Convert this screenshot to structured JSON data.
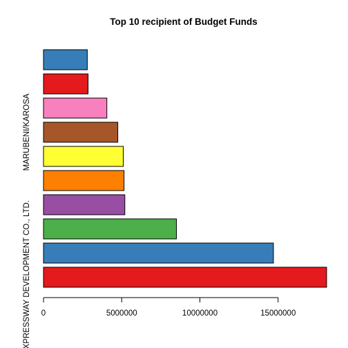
{
  "chart_data": {
    "type": "bar",
    "orientation": "horizontal",
    "title": "Top 10 recipient of Budget Funds",
    "xlabel": "",
    "ylabel": "",
    "xlim": [
      0,
      18100000
    ],
    "x_ticks": [
      0,
      5000000,
      10000000,
      15000000
    ],
    "x_tick_labels": [
      "0",
      "5000000",
      "10000000",
      "15000000"
    ],
    "bar_labels_shown": [
      {
        "bar": 0,
        "text": "EXPRESSWAY DEVELOPMENT CO., LTD."
      },
      {
        "bar": 6,
        "text": "MARUBENI/KAROSA"
      }
    ],
    "values": [
      18100000,
      14700000,
      8500000,
      5200000,
      5150000,
      5100000,
      4750000,
      4050000,
      2850000,
      2800000
    ],
    "colors": [
      "#E41A1C",
      "#377EB8",
      "#4DAF4A",
      "#984EA3",
      "#FF7F00",
      "#FFFF33",
      "#A65628",
      "#F781BF",
      "#E41A1C",
      "#377EB8"
    ],
    "grid": false,
    "legend": "none"
  }
}
